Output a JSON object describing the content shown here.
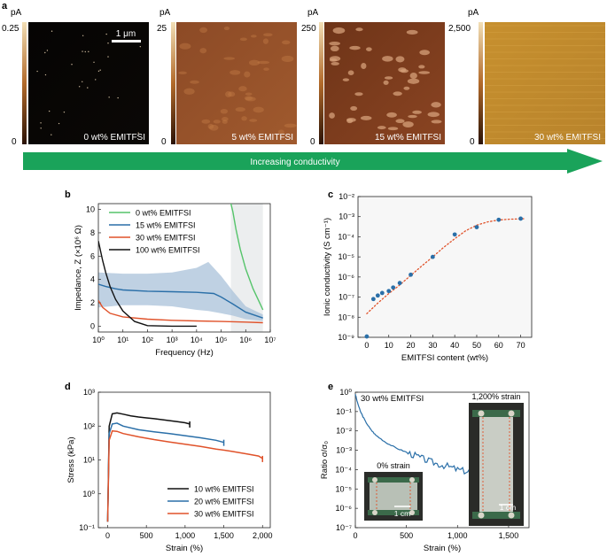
{
  "panel_labels": [
    "a",
    "b",
    "c",
    "d",
    "e"
  ],
  "panel_a": {
    "unit": "pA",
    "scale_bar": "1 μm",
    "images": [
      {
        "top_value": "0.25",
        "bottom_value": "0",
        "label": "0 wt% EMITFSI",
        "colors": [
          "#050403",
          "#0b0806"
        ]
      },
      {
        "top_value": "25",
        "bottom_value": "0",
        "label": "5 wt% EMITFSI",
        "colors": [
          "#8c4a26",
          "#a05a2e"
        ]
      },
      {
        "top_value": "250",
        "bottom_value": "0",
        "label": "15 wt% EMITFSI",
        "colors": [
          "#6e3418",
          "#8a4422"
        ]
      },
      {
        "top_value": "2,500",
        "bottom_value": "0",
        "label": "30 wt% EMITFSI",
        "colors": [
          "#c7902e",
          "#b8832c"
        ]
      }
    ],
    "arrow_text": "Increasing conductivity",
    "arrow_color": "#1aa35a"
  },
  "chart_data": [
    {
      "panel": "b",
      "type": "line",
      "xlabel": "Frequency (Hz)",
      "ylabel": "Impedance, Z (×10⁶ Ω)",
      "x_scale": "log",
      "xlim": [
        1,
        10000000
      ],
      "ylim": [
        -0.5,
        10.5
      ],
      "x_ticks": [
        1,
        10,
        100,
        1000,
        10000,
        100000,
        1000000,
        10000000
      ],
      "x_tick_labels": [
        "10⁰",
        "10¹",
        "10²",
        "10³",
        "10⁴",
        "10⁵",
        "10⁶",
        "10⁷"
      ],
      "y_ticks": [
        0,
        2,
        4,
        6,
        8,
        10
      ],
      "y_tick_labels": [
        "0",
        "2",
        "4",
        "6",
        "8",
        "10"
      ],
      "legend": "top-left",
      "series": [
        {
          "name": "0 wt% EMITFSI",
          "color": "#55c46a",
          "x": [
            250000,
            300000,
            400000,
            600000,
            1000000,
            2000000,
            3500000,
            5000000
          ],
          "y": [
            10.5,
            9.8,
            8.3,
            6.6,
            4.9,
            3.2,
            2.1,
            1.4
          ]
        },
        {
          "name": "15 wt% EMITFSI",
          "color": "#2a6fa8",
          "x": [
            1,
            2,
            5,
            10,
            100,
            1000,
            10000,
            50000,
            100000,
            300000,
            1000000,
            5000000
          ],
          "y": [
            3.6,
            3.4,
            3.2,
            3.1,
            3.0,
            2.95,
            2.9,
            2.8,
            2.5,
            1.9,
            1.2,
            0.7
          ]
        },
        {
          "name": "30 wt% EMITFSI",
          "color": "#e0522a",
          "x": [
            1,
            1.5,
            3,
            10,
            100,
            1000,
            10000,
            100000,
            1000000,
            5000000
          ],
          "y": [
            2.2,
            1.6,
            1.1,
            0.8,
            0.6,
            0.5,
            0.45,
            0.4,
            0.35,
            0.3
          ]
        },
        {
          "name": "100 wt% EMITFSI",
          "color": "#111111",
          "x": [
            1,
            1.5,
            2,
            3,
            5,
            10,
            30,
            100,
            1000,
            10000
          ],
          "y": [
            7.3,
            5.6,
            4.6,
            3.4,
            2.3,
            1.3,
            0.4,
            0.05,
            0.0,
            0.0
          ]
        }
      ],
      "band": {
        "series": "15 wt% EMITFSI",
        "color": "#a9c1da",
        "x": [
          1,
          10,
          100,
          1000,
          10000,
          30000,
          100000,
          300000,
          1000000,
          5000000
        ],
        "upper": [
          4.6,
          4.5,
          4.5,
          4.6,
          5.0,
          5.5,
          4.3,
          3.0,
          1.7,
          1.0
        ],
        "lower": [
          1.6,
          1.8,
          1.8,
          1.7,
          1.4,
          1.3,
          1.1,
          0.9,
          0.6,
          0.45
        ]
      },
      "shade_region": {
        "x_start": 250000,
        "x_end": 5000000,
        "color": "#eceeef"
      }
    },
    {
      "panel": "c",
      "type": "scatter",
      "xlabel": "EMITFSI content (wt%)",
      "ylabel": "Ionic conductivity (S cm⁻¹)",
      "y_scale": "log",
      "xlim": [
        -4,
        75
      ],
      "ylim_exp": [
        -9,
        -2
      ],
      "x_ticks": [
        0,
        10,
        20,
        30,
        40,
        50,
        60,
        70
      ],
      "x_tick_labels": [
        "0",
        "10",
        "20",
        "30",
        "40",
        "50",
        "60",
        "70"
      ],
      "y_tick_labels": [
        "10⁻⁹",
        "10⁻⁸",
        "10⁻⁷",
        "10⁻⁶",
        "10⁻⁵",
        "10⁻⁴",
        "10⁻³",
        "10⁻²"
      ],
      "points": {
        "color": "#2a6fa8",
        "x": [
          0,
          3,
          5,
          7,
          10,
          12,
          15,
          20,
          30,
          40,
          50,
          60,
          70
        ],
        "y": [
          1.1e-09,
          8e-08,
          1.2e-07,
          1.6e-07,
          2e-07,
          3e-07,
          5e-07,
          1.3e-06,
          1e-05,
          0.00013,
          0.0003,
          0.0007,
          0.0008
        ]
      },
      "fit": {
        "color": "#e0522a",
        "style": "dotted",
        "x": [
          0,
          5,
          10,
          15,
          20,
          25,
          30,
          35,
          40,
          45,
          50,
          55,
          60,
          65,
          70,
          72
        ],
        "y": [
          1.5e-08,
          5e-08,
          1.5e-07,
          4e-07,
          1.2e-06,
          3.5e-06,
          1e-05,
          3e-05,
          8e-05,
          0.0002,
          0.00038,
          0.00055,
          0.00068,
          0.00075,
          0.00078,
          0.00079
        ]
      }
    },
    {
      "panel": "d",
      "type": "line",
      "xlabel": "Strain (%)",
      "ylabel": "Stress (kPa)",
      "y_scale": "log",
      "xlim": [
        -120,
        2100
      ],
      "ylim_exp": [
        -1,
        3
      ],
      "x_ticks": [
        0,
        500,
        1000,
        1500,
        2000
      ],
      "x_tick_labels": [
        "0",
        "500",
        "1,000",
        "1,500",
        "2,000"
      ],
      "y_tick_labels": [
        "10⁻¹",
        "10⁰",
        "10¹",
        "10²",
        "10³"
      ],
      "legend": "bottom-right",
      "series": [
        {
          "name": "10 wt% EMITFSI",
          "color": "#111111",
          "x": [
            0,
            20,
            60,
            120,
            200,
            300,
            400,
            500,
            600,
            700,
            800,
            900,
            1000,
            1060
          ],
          "y": [
            0.15,
            100,
            230,
            245,
            225,
            200,
            185,
            175,
            165,
            155,
            145,
            135,
            125,
            115
          ]
        },
        {
          "name": "20 wt% EMITFSI",
          "color": "#2a6fa8",
          "x": [
            0,
            20,
            60,
            120,
            200,
            400,
            600,
            800,
            1000,
            1200,
            1400,
            1500
          ],
          "y": [
            0.15,
            60,
            115,
            122,
            100,
            78,
            68,
            60,
            52,
            45,
            38,
            33
          ]
        },
        {
          "name": "30 wt% EMITFSI",
          "color": "#e0522a",
          "x": [
            0,
            20,
            60,
            120,
            200,
            400,
            600,
            800,
            1000,
            1200,
            1400,
            1600,
            1800,
            1950,
            2000
          ],
          "y": [
            0.15,
            38,
            72,
            70,
            60,
            48,
            40,
            34,
            29,
            25,
            21,
            18,
            15,
            13,
            11
          ]
        }
      ]
    },
    {
      "panel": "e",
      "type": "line",
      "xlabel": "Strain (%)",
      "ylabel": "Ratio σ/σ₀",
      "y_scale": "log",
      "xlim": [
        0,
        1700
      ],
      "ylim_exp": [
        -7,
        0
      ],
      "x_ticks": [
        0,
        500,
        1000,
        1500
      ],
      "x_tick_labels": [
        "0",
        "500",
        "1,000",
        "1,500"
      ],
      "y_tick_labels": [
        "10⁻⁷",
        "10⁻⁶",
        "10⁻⁵",
        "10⁻⁴",
        "10⁻³",
        "10⁻²",
        "10⁻¹",
        "10⁰"
      ],
      "annotation": "30 wt% EMITFSI",
      "series": [
        {
          "name": "30 wt% EMITFSI",
          "color": "#2a6fa8",
          "x": [
            0,
            20,
            50,
            100,
            150,
            200,
            300,
            400,
            500,
            600,
            700,
            800,
            900,
            1000,
            1100,
            1150
          ],
          "y": [
            0.8,
            0.3,
            0.1,
            0.03,
            0.012,
            0.006,
            0.0025,
            0.0013,
            0.0008,
            0.0005,
            0.0003,
            0.0002,
            0.00015,
            0.0001,
            8e-05,
            7e-05
          ]
        }
      ],
      "insets": [
        {
          "caption": "0% strain",
          "scale": "1 cm"
        },
        {
          "caption": "1,200% strain",
          "scale": "1 cm"
        }
      ]
    }
  ]
}
